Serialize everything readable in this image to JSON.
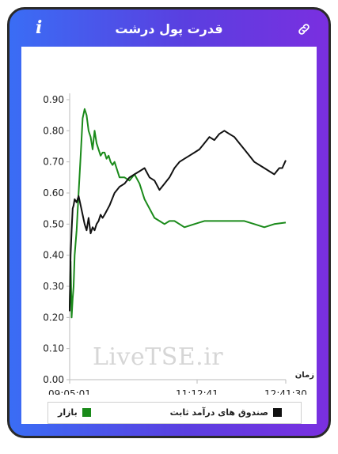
{
  "header": {
    "title": "قدرت پول درشت",
    "info_icon": "i",
    "link_icon": "link-icon"
  },
  "watermark": "LiveTSE.ir",
  "colors": {
    "market": "#1a8a1a",
    "fixed_income": "#111111",
    "frame_start": "#3a6df5",
    "frame_end": "#7a2fe0"
  },
  "legend": {
    "fixed_income": "صندوق های درآمد ثابت",
    "market": "بازار"
  },
  "chart_data": {
    "type": "line",
    "xlabel": "زمان",
    "ylabel": "",
    "ylim": [
      0,
      0.9
    ],
    "yticks": [
      "0.00",
      "0.10",
      "0.20",
      "0.30",
      "0.40",
      "0.50",
      "0.60",
      "0.70",
      "0.80",
      "0.90"
    ],
    "xticks": [
      "09:05:01",
      "11:12:41",
      "12:41:30"
    ],
    "xlim": [
      "09:05:01",
      "12:41:30"
    ],
    "grid": false,
    "legend_position": "bottom",
    "series": [
      {
        "name": "بازار",
        "color": "#1a8a1a",
        "x": [
          "09:05:01",
          "09:06:00",
          "09:07:00",
          "09:08:00",
          "09:09:00",
          "09:10:00",
          "09:12:00",
          "09:14:00",
          "09:16:00",
          "09:18:00",
          "09:20:00",
          "09:22:00",
          "09:24:00",
          "09:26:00",
          "09:28:00",
          "09:30:00",
          "09:32:00",
          "09:34:00",
          "09:36:00",
          "09:38:00",
          "09:40:00",
          "09:42:00",
          "09:44:00",
          "09:46:00",
          "09:48:00",
          "09:50:00",
          "09:55:00",
          "10:00:00",
          "10:05:00",
          "10:10:00",
          "10:15:00",
          "10:20:00",
          "10:25:00",
          "10:30:00",
          "10:35:00",
          "10:40:00",
          "10:45:00",
          "10:50:00",
          "10:55:00",
          "11:00:00",
          "11:10:00",
          "11:20:00",
          "11:30:00",
          "11:40:00",
          "11:50:00",
          "12:00:00",
          "12:10:00",
          "12:20:00",
          "12:30:00",
          "12:41:30"
        ],
        "values": [
          0.23,
          0.38,
          0.2,
          0.26,
          0.3,
          0.4,
          0.48,
          0.6,
          0.72,
          0.84,
          0.87,
          0.85,
          0.8,
          0.78,
          0.74,
          0.8,
          0.76,
          0.74,
          0.72,
          0.73,
          0.73,
          0.71,
          0.72,
          0.7,
          0.69,
          0.7,
          0.65,
          0.65,
          0.64,
          0.66,
          0.63,
          0.58,
          0.55,
          0.52,
          0.51,
          0.5,
          0.51,
          0.51,
          0.5,
          0.49,
          0.5,
          0.51,
          0.51,
          0.51,
          0.51,
          0.51,
          0.5,
          0.49,
          0.5,
          0.505
        ]
      },
      {
        "name": "صندوق های درآمد ثابت",
        "color": "#111111",
        "x": [
          "09:05:01",
          "09:06:00",
          "09:07:00",
          "09:08:00",
          "09:09:00",
          "09:10:00",
          "09:12:00",
          "09:14:00",
          "09:16:00",
          "09:18:00",
          "09:20:00",
          "09:22:00",
          "09:24:00",
          "09:26:00",
          "09:28:00",
          "09:30:00",
          "09:32:00",
          "09:34:00",
          "09:36:00",
          "09:38:00",
          "09:40:00",
          "09:45:00",
          "09:50:00",
          "09:55:00",
          "10:00:00",
          "10:05:00",
          "10:10:00",
          "10:15:00",
          "10:20:00",
          "10:25:00",
          "10:30:00",
          "10:35:00",
          "10:40:00",
          "10:45:00",
          "10:50:00",
          "10:55:00",
          "11:00:00",
          "11:05:00",
          "11:10:00",
          "11:15:00",
          "11:20:00",
          "11:25:00",
          "11:30:00",
          "11:35:00",
          "11:40:00",
          "11:45:00",
          "11:50:00",
          "11:55:00",
          "12:00:00",
          "12:05:00",
          "12:10:00",
          "12:15:00",
          "12:20:00",
          "12:25:00",
          "12:30:00",
          "12:35:00",
          "12:38:00",
          "12:41:30"
        ],
        "values": [
          0.22,
          0.4,
          0.48,
          0.55,
          0.56,
          0.58,
          0.57,
          0.59,
          0.56,
          0.53,
          0.5,
          0.48,
          0.52,
          0.47,
          0.49,
          0.48,
          0.5,
          0.51,
          0.53,
          0.52,
          0.53,
          0.56,
          0.6,
          0.62,
          0.63,
          0.65,
          0.66,
          0.67,
          0.68,
          0.65,
          0.64,
          0.61,
          0.63,
          0.65,
          0.68,
          0.7,
          0.71,
          0.72,
          0.73,
          0.74,
          0.76,
          0.78,
          0.77,
          0.79,
          0.8,
          0.79,
          0.78,
          0.76,
          0.74,
          0.72,
          0.7,
          0.69,
          0.68,
          0.67,
          0.66,
          0.68,
          0.68,
          0.705
        ]
      }
    ]
  }
}
